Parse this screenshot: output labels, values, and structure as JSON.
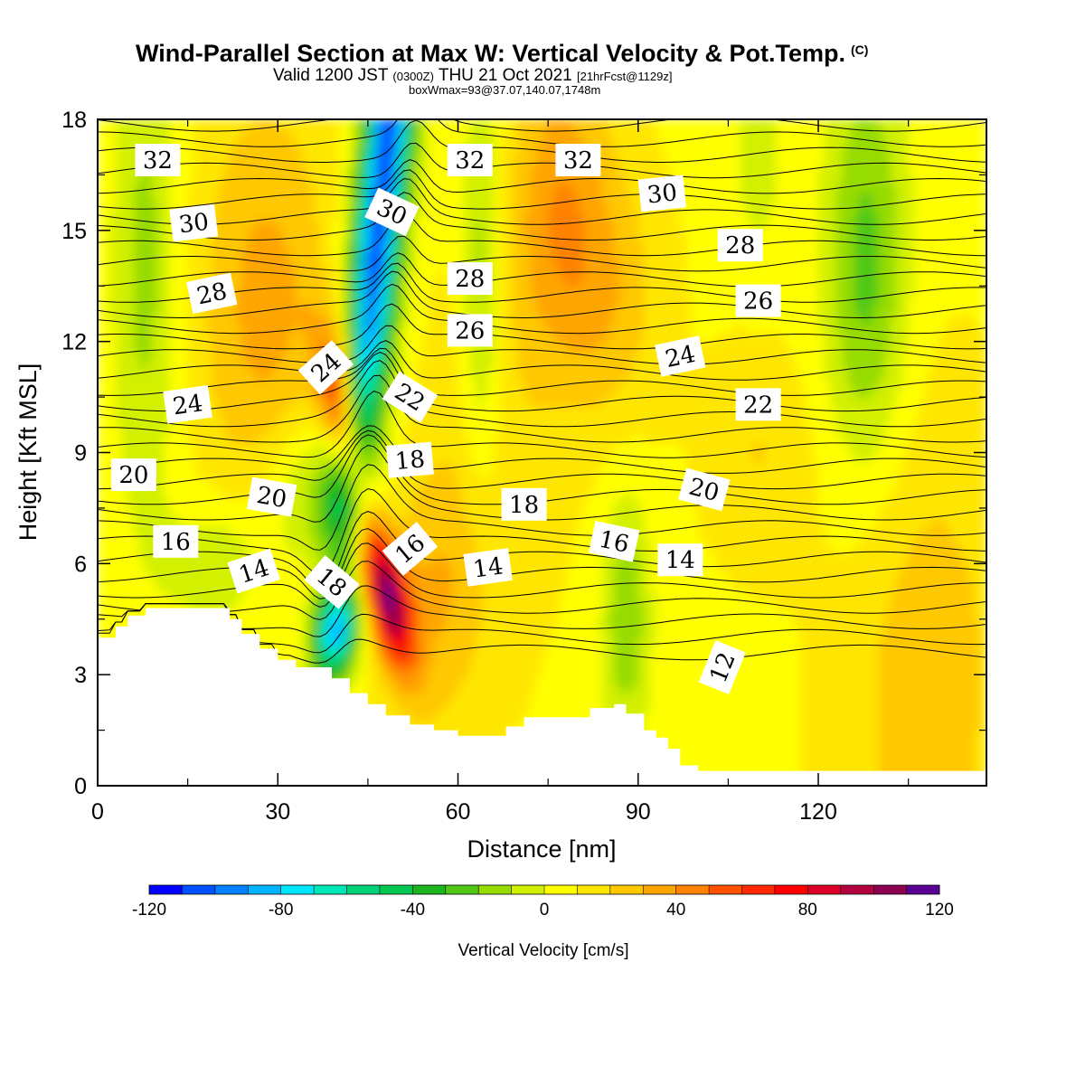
{
  "title": {
    "main": "Wind-Parallel Section at Max W: Vertical Velocity & Pot.Temp.",
    "copyright": "(C)",
    "valid_prefix": "Valid 1200 JST",
    "valid_utc": "(0300Z)",
    "valid_date": "THU 21 Oct 2021",
    "forecast_info": "[21hrFcst@1129z]",
    "box_max": "boxWmax=93@37.07,140.07,1748m"
  },
  "chart_data": {
    "type": "heatmap",
    "xlabel": "Distance [nm]",
    "ylabel": "Height [Kft MSL]",
    "xlim": [
      0,
      148
    ],
    "ylim": [
      0,
      18
    ],
    "x_ticks": [
      0,
      30,
      60,
      90,
      120
    ],
    "y_ticks": [
      0,
      3,
      6,
      9,
      12,
      15,
      18
    ],
    "grid": false,
    "colorbar": {
      "label": "Vertical Velocity [cm/s]",
      "min": -120,
      "max": 120,
      "step": 10,
      "tick_values": [
        -120,
        -80,
        -40,
        0,
        40,
        80,
        120
      ],
      "colors": [
        "#0000ff",
        "#0050ff",
        "#0080ff",
        "#00b4ff",
        "#00e6ff",
        "#00e6b4",
        "#00d278",
        "#00c850",
        "#1eb41e",
        "#50c814",
        "#96dc00",
        "#d2f000",
        "#ffff00",
        "#ffe600",
        "#ffc800",
        "#ffa500",
        "#ff8200",
        "#ff5000",
        "#ff2800",
        "#ff0000",
        "#dc0028",
        "#b4003c",
        "#8c0050",
        "#5a0096"
      ]
    },
    "terrain_kft": [
      [
        0,
        4.0
      ],
      [
        3,
        4.3
      ],
      [
        5,
        4.6
      ],
      [
        8,
        4.8
      ],
      [
        20,
        4.8
      ],
      [
        22,
        4.5
      ],
      [
        24,
        4.1
      ],
      [
        27,
        3.7
      ],
      [
        30,
        3.4
      ],
      [
        33,
        3.2
      ],
      [
        36,
        3.2
      ],
      [
        39,
        2.9
      ],
      [
        42,
        2.5
      ],
      [
        45,
        2.2
      ],
      [
        48,
        1.9
      ],
      [
        52,
        1.65
      ],
      [
        56,
        1.5
      ],
      [
        60,
        1.35
      ],
      [
        65,
        1.35
      ],
      [
        68,
        1.6
      ],
      [
        71,
        1.85
      ],
      [
        75,
        1.85
      ],
      [
        80,
        1.85
      ],
      [
        82,
        2.1
      ],
      [
        86,
        2.2
      ],
      [
        88,
        1.95
      ],
      [
        91,
        1.5
      ],
      [
        93,
        1.3
      ],
      [
        95,
        1.0
      ],
      [
        97,
        0.55
      ],
      [
        100,
        0.4
      ],
      [
        148,
        0.4
      ]
    ],
    "theta_contours": [
      {
        "level": 12,
        "label_at": [
          104,
          3.2
        ],
        "angle": -68
      },
      {
        "level": 14,
        "label_at": [
          26,
          5.8
        ],
        "angle": -18
      },
      {
        "level": 14,
        "label_at": [
          65,
          5.9
        ],
        "angle": -8
      },
      {
        "level": 14,
        "label_at": [
          97,
          6.1
        ],
        "angle": 0
      },
      {
        "level": 16,
        "label_at": [
          13,
          6.6
        ],
        "angle": 0
      },
      {
        "level": 16,
        "label_at": [
          52,
          6.4
        ],
        "angle": -40
      },
      {
        "level": 16,
        "label_at": [
          86,
          6.6
        ],
        "angle": 12
      },
      {
        "level": 18,
        "label_at": [
          39,
          5.5
        ],
        "angle": 40
      },
      {
        "level": 18,
        "label_at": [
          52,
          8.8
        ],
        "angle": -5
      },
      {
        "level": 18,
        "label_at": [
          71,
          7.6
        ],
        "angle": 0
      },
      {
        "level": 20,
        "label_at": [
          6,
          8.4
        ],
        "angle": 0
      },
      {
        "level": 20,
        "label_at": [
          29,
          7.8
        ],
        "angle": 10
      },
      {
        "level": 20,
        "label_at": [
          101,
          8.0
        ],
        "angle": 15
      },
      {
        "level": 22,
        "label_at": [
          52,
          10.5
        ],
        "angle": 32
      },
      {
        "level": 22,
        "label_at": [
          110,
          10.3
        ],
        "angle": 0
      },
      {
        "level": 24,
        "label_at": [
          15,
          10.3
        ],
        "angle": -8
      },
      {
        "level": 24,
        "label_at": [
          38,
          11.3
        ],
        "angle": -42
      },
      {
        "level": 24,
        "label_at": [
          97,
          11.6
        ],
        "angle": -12
      },
      {
        "level": 26,
        "label_at": [
          62,
          12.3
        ],
        "angle": 0
      },
      {
        "level": 26,
        "label_at": [
          110,
          13.1
        ],
        "angle": 0
      },
      {
        "level": 28,
        "label_at": [
          19,
          13.3
        ],
        "angle": -12
      },
      {
        "level": 28,
        "label_at": [
          62,
          13.7
        ],
        "angle": 0
      },
      {
        "level": 28,
        "label_at": [
          107,
          14.6
        ],
        "angle": 0
      },
      {
        "level": 30,
        "label_at": [
          16,
          15.2
        ],
        "angle": -7
      },
      {
        "level": 30,
        "label_at": [
          49,
          15.5
        ],
        "angle": 25
      },
      {
        "level": 30,
        "label_at": [
          94,
          16.0
        ],
        "angle": -6
      },
      {
        "level": 32,
        "label_at": [
          10,
          16.9
        ],
        "angle": 0
      },
      {
        "level": 32,
        "label_at": [
          62,
          16.9
        ],
        "angle": 0
      },
      {
        "level": 32,
        "label_at": [
          80,
          16.9
        ],
        "angle": 0
      }
    ]
  }
}
